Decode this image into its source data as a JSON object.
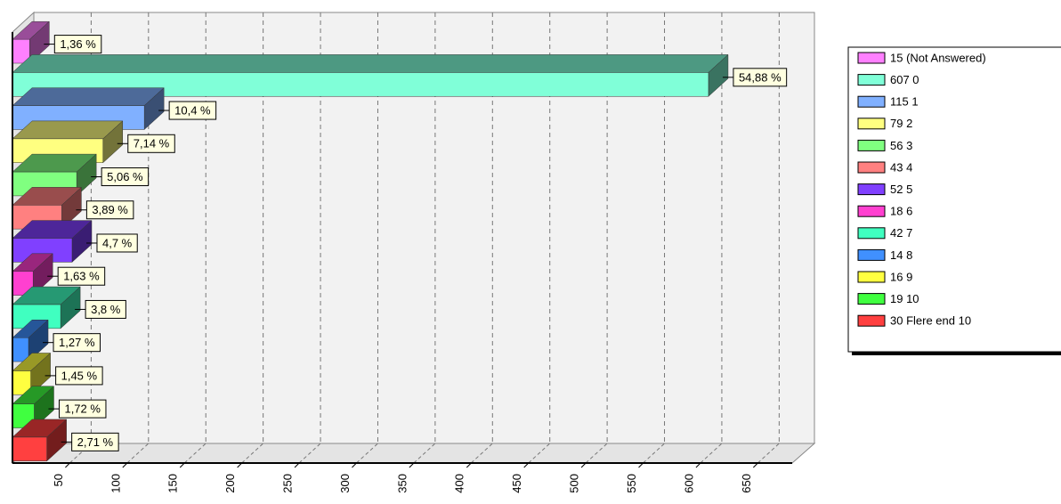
{
  "chart_data": {
    "type": "bar",
    "orientation": "horizontal",
    "three_d": true,
    "categories": [
      "15 (Not Answered)",
      "607 0",
      "115 1",
      "79 2",
      "56 3",
      "43 4",
      "52 5",
      "18 6",
      "42 7",
      "14 8",
      "16 9",
      "19 10",
      "30 Flere end 10"
    ],
    "values": [
      15,
      607,
      115,
      79,
      56,
      43,
      52,
      18,
      42,
      14,
      16,
      19,
      30
    ],
    "value_labels": [
      "1,36 %",
      "54,88 %",
      "10,4 %",
      "7,14 %",
      "5,06 %",
      "3,89 %",
      "4,7 %",
      "1,63 %",
      "3,8 %",
      "1,27 %",
      "1,45 %",
      "1,72 %",
      "2,71 %"
    ],
    "colors": [
      "#ff80ff",
      "#80ffd8",
      "#80b0ff",
      "#ffff80",
      "#80ff80",
      "#ff8080",
      "#8040ff",
      "#ff40d0",
      "#40ffc0",
      "#4090ff",
      "#ffff40",
      "#40ff40",
      "#ff4040"
    ],
    "xlim": [
      0,
      680
    ],
    "xticks": [
      50,
      100,
      150,
      200,
      250,
      300,
      350,
      400,
      450,
      500,
      550,
      600,
      650
    ],
    "grid": true,
    "legend": "right"
  }
}
